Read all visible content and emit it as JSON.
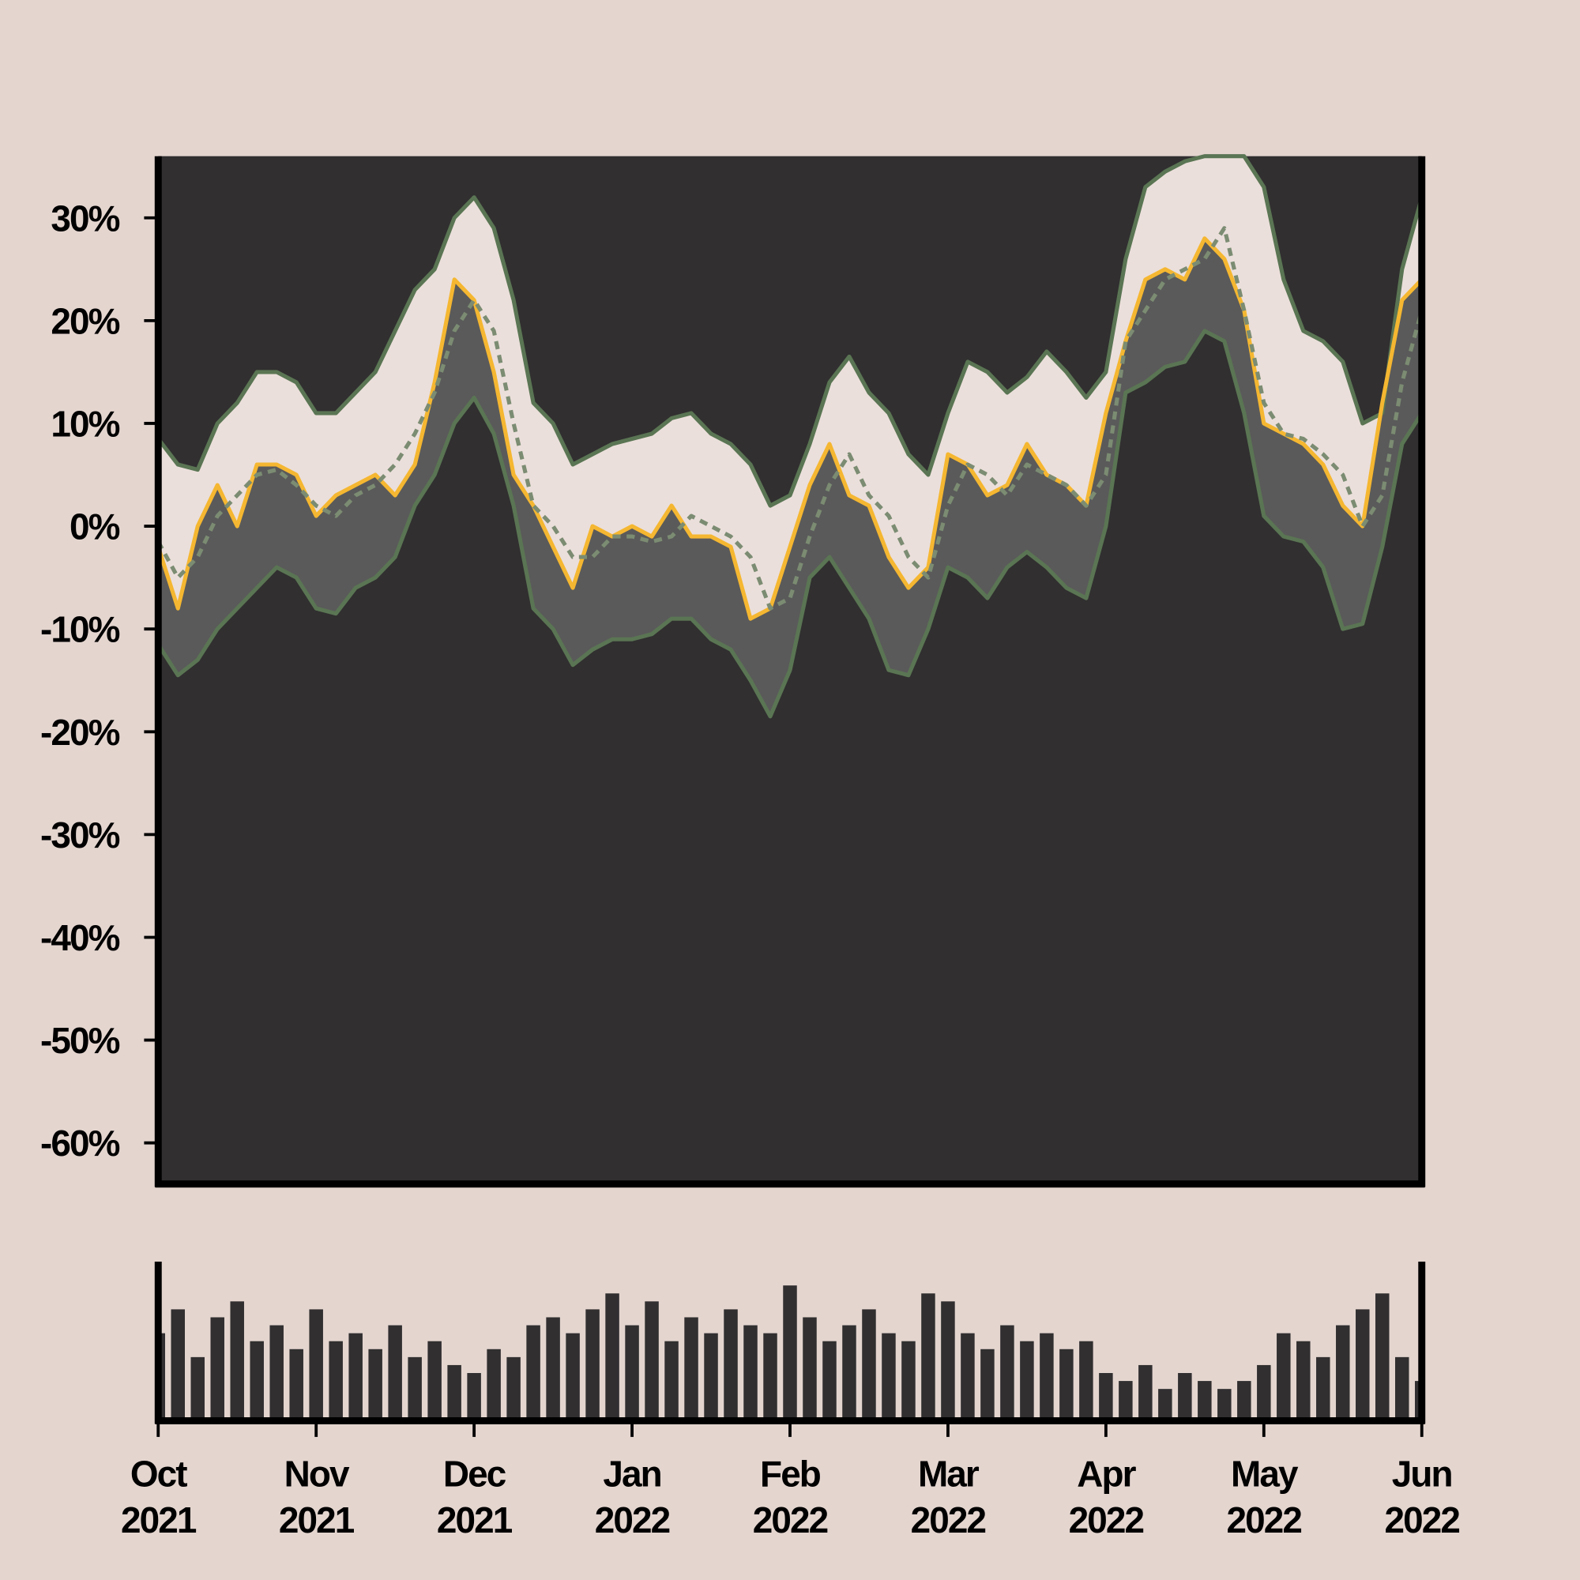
{
  "chart_data": [
    {
      "type": "line",
      "x": [
        0,
        0.125,
        0.25,
        0.375,
        0.5,
        0.625,
        0.75,
        0.875,
        1,
        1.125,
        1.25,
        1.375,
        1.5,
        1.625,
        1.75,
        1.875,
        2,
        2.125,
        2.25,
        2.375,
        2.5,
        2.625,
        2.75,
        2.875,
        3,
        3.125,
        3.25,
        3.375,
        3.5,
        3.625,
        3.75,
        3.875,
        4,
        4.125,
        4.25,
        4.375,
        4.5,
        4.625,
        4.75,
        4.875,
        5,
        5.125,
        5.25,
        5.375,
        5.5,
        5.625,
        5.75,
        5.875,
        6,
        6.125,
        6.25,
        6.375,
        6.5,
        6.625,
        6.75,
        6.875,
        7,
        7.125,
        7.25,
        7.375,
        7.5,
        7.625,
        7.75,
        7.875,
        8
      ],
      "xlim": [
        0,
        8
      ],
      "ylim": [
        -64,
        36
      ],
      "yticks": [
        {
          "value": -60,
          "label": "-60%"
        },
        {
          "value": -50,
          "label": "-50%"
        },
        {
          "value": -40,
          "label": "-40%"
        },
        {
          "value": -30,
          "label": "-30%"
        },
        {
          "value": -20,
          "label": "-20%"
        },
        {
          "value": -10,
          "label": "-10%"
        },
        {
          "value": 0,
          "label": "0%"
        },
        {
          "value": 10,
          "label": "10%"
        },
        {
          "value": 20,
          "label": "20%"
        },
        {
          "value": 30,
          "label": "30%"
        }
      ],
      "base_color": "#312f30",
      "series": [
        {
          "color": "#5a7553",
          "fill": "#ebdfdb",
          "values": [
            8.5,
            6,
            5.5,
            10,
            12,
            15,
            15,
            14,
            11,
            11,
            13,
            15,
            19,
            23,
            25,
            30,
            32,
            29,
            22,
            12,
            10,
            6,
            7,
            8,
            8.5,
            9,
            10.5,
            11,
            9,
            8,
            6,
            2,
            3,
            8,
            14,
            16.5,
            13,
            11,
            7,
            5,
            11,
            16,
            15,
            13,
            14.5,
            17,
            15,
            12.5,
            15,
            26,
            33,
            34.5,
            35.5,
            36,
            36,
            36,
            33,
            24,
            19,
            18,
            16,
            10,
            11,
            25,
            32
          ]
        },
        {
          "color": "#f5b731",
          "fill": "#5a5a5a",
          "values": [
            -2,
            -8,
            0,
            4,
            0,
            6,
            6,
            5,
            1,
            3,
            4,
            5,
            3,
            6,
            14,
            24,
            22,
            15,
            5,
            2,
            -2,
            -6,
            0,
            -1,
            0,
            -1,
            2,
            -1,
            -1,
            -2,
            -9,
            -8,
            -2,
            4,
            8,
            3,
            2,
            -3,
            -6,
            -4,
            7,
            6,
            3,
            4,
            8,
            5,
            4,
            2,
            11,
            18,
            24,
            25,
            24,
            28,
            26,
            21,
            10,
            9,
            8,
            6,
            2,
            0,
            12,
            22,
            24
          ]
        },
        {
          "color": "#7b8c72",
          "dash": true,
          "values": [
            -1.5,
            -5,
            -3,
            1,
            3,
            5,
            5.5,
            4,
            2,
            1,
            3,
            4,
            6,
            9,
            13,
            19,
            22,
            19,
            10,
            2,
            0,
            -3,
            -3,
            -1,
            -1,
            -1.5,
            -1,
            1,
            0,
            -1,
            -3,
            -8,
            -7,
            -1,
            4,
            7,
            3,
            1,
            -3,
            -5,
            2,
            6,
            5,
            3,
            6,
            5,
            4,
            2,
            5,
            18,
            21,
            24,
            25,
            26,
            29,
            21,
            12,
            9,
            8.5,
            7,
            5,
            0,
            3,
            14,
            21
          ]
        },
        {
          "color": "#5a7553",
          "fill": "#312f30",
          "values": [
            -11.5,
            -14.5,
            -13,
            -10,
            -8,
            -6,
            -4,
            -5,
            -8,
            -8.5,
            -6,
            -5,
            -3,
            2,
            5,
            10,
            12.5,
            9,
            2,
            -8,
            -10,
            -13.5,
            -12,
            -11,
            -11,
            -10.5,
            -9,
            -9,
            -11,
            -12,
            -15,
            -18.5,
            -14,
            -5,
            -3,
            -6,
            -9,
            -14,
            -14.5,
            -10,
            -4,
            -5,
            -7,
            -4,
            -2.5,
            -4,
            -6,
            -7,
            0,
            13,
            14,
            15.5,
            16,
            19,
            18,
            11,
            1,
            -1,
            -1.5,
            -4,
            -10,
            -9.5,
            -2,
            8,
            11
          ]
        }
      ]
    },
    {
      "type": "bar",
      "x": [
        0,
        0.125,
        0.25,
        0.375,
        0.5,
        0.625,
        0.75,
        0.875,
        1,
        1.125,
        1.25,
        1.375,
        1.5,
        1.625,
        1.75,
        1.875,
        2,
        2.125,
        2.25,
        2.375,
        2.5,
        2.625,
        2.75,
        2.875,
        3,
        3.125,
        3.25,
        3.375,
        3.5,
        3.625,
        3.75,
        3.875,
        4,
        4.125,
        4.25,
        4.375,
        4.5,
        4.625,
        4.75,
        4.875,
        5,
        5.125,
        5.25,
        5.375,
        5.5,
        5.625,
        5.75,
        5.875,
        6,
        6.125,
        6.25,
        6.375,
        6.5,
        6.625,
        6.75,
        6.875,
        7,
        7.125,
        7.25,
        7.375,
        7.5,
        7.625,
        7.75,
        7.875,
        8
      ],
      "values": [
        55,
        70,
        40,
        65,
        75,
        50,
        60,
        45,
        70,
        50,
        55,
        45,
        60,
        40,
        50,
        35,
        30,
        45,
        40,
        60,
        65,
        55,
        70,
        80,
        60,
        75,
        50,
        65,
        55,
        70,
        60,
        55,
        85,
        65,
        50,
        60,
        70,
        55,
        50,
        80,
        75,
        55,
        45,
        60,
        50,
        55,
        45,
        50,
        30,
        25,
        35,
        20,
        30,
        25,
        20,
        25,
        35,
        55,
        50,
        40,
        60,
        70,
        80,
        40,
        25
      ],
      "color": "#312f30",
      "xlim": [
        0,
        8
      ],
      "ylim": [
        0,
        100
      ],
      "xticks": [
        {
          "value": 0,
          "label": "Oct\n2021"
        },
        {
          "value": 1,
          "label": "Nov\n2021"
        },
        {
          "value": 2,
          "label": "Dec\n2021"
        },
        {
          "value": 3,
          "label": "Jan\n2022"
        },
        {
          "value": 4,
          "label": "Feb\n2022"
        },
        {
          "value": 5,
          "label": "Mar\n2022"
        },
        {
          "value": 6,
          "label": "Apr\n2022"
        },
        {
          "value": 7,
          "label": "May\n2022"
        },
        {
          "value": 8,
          "label": "Jun\n2022"
        }
      ]
    }
  ]
}
